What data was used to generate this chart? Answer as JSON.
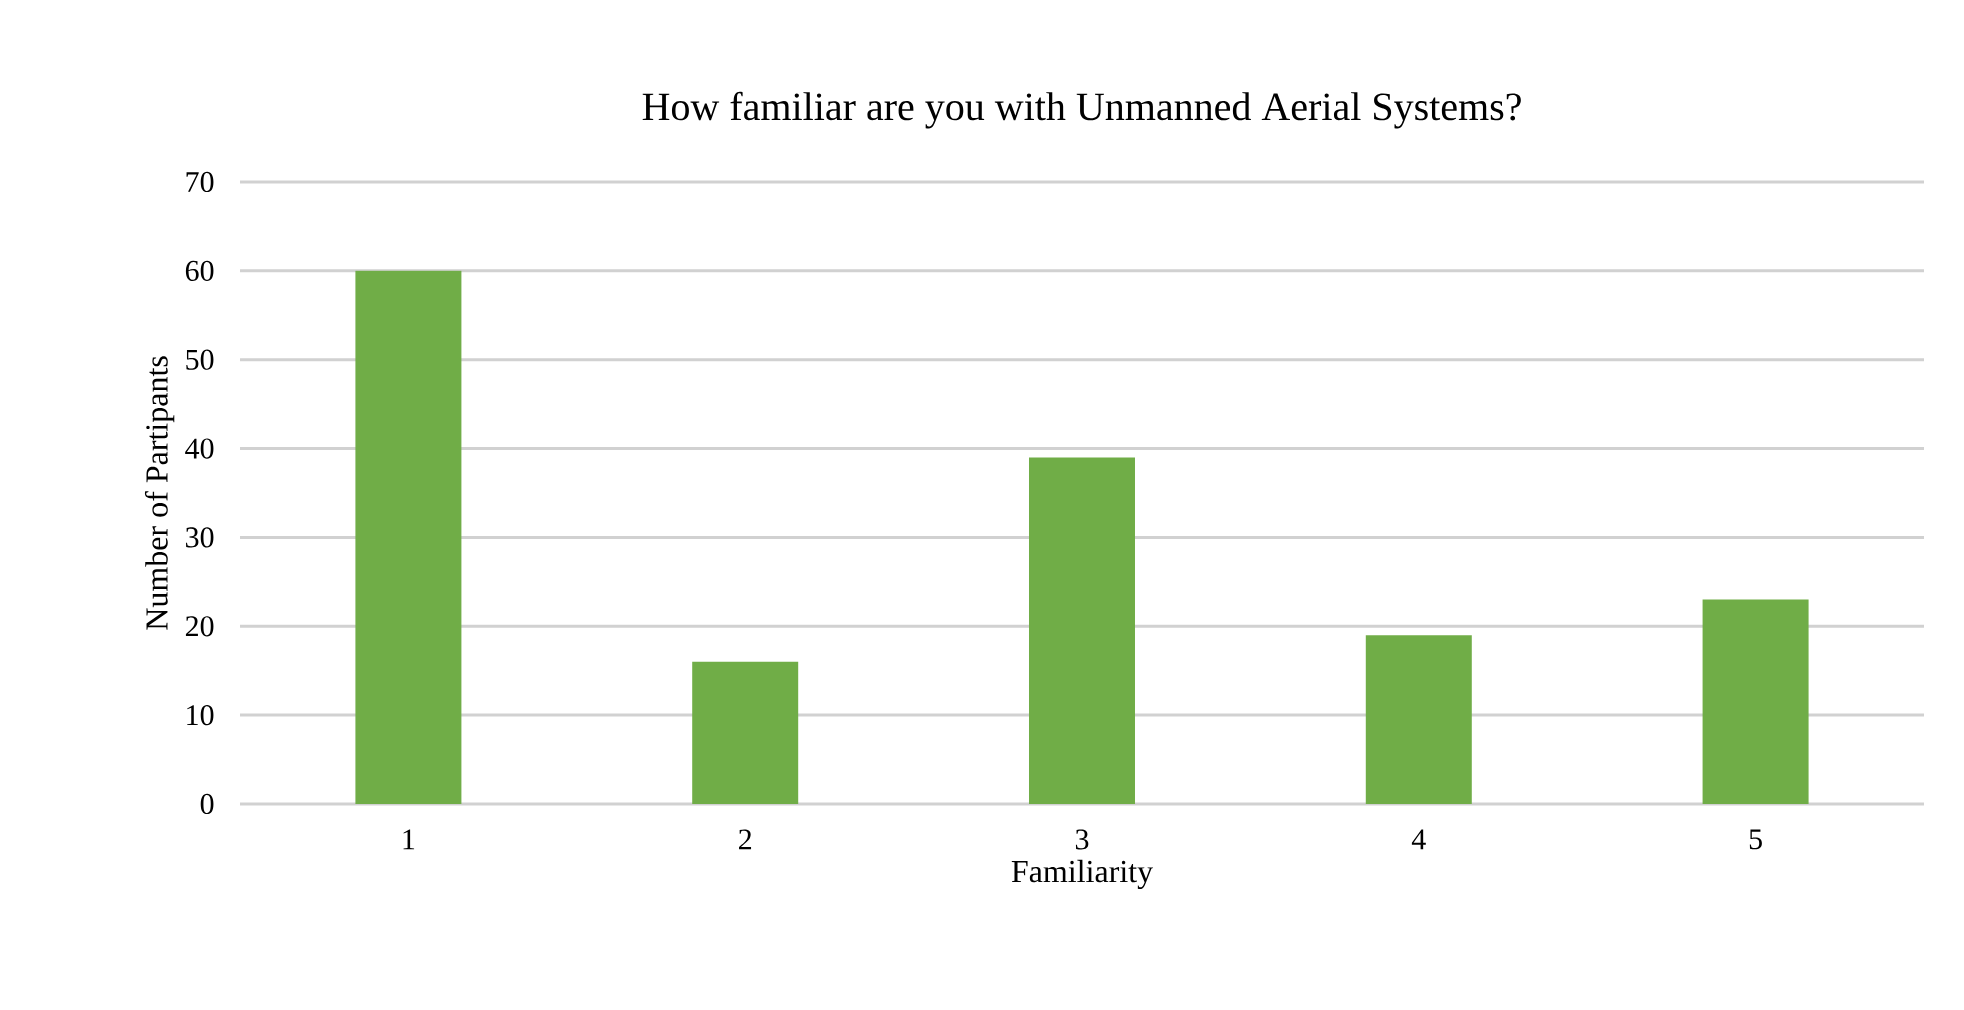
{
  "chart_data": {
    "type": "bar",
    "title": "How familiar are you with Unmanned Aerial Systems?",
    "xlabel": "Familiarity",
    "ylabel": "Number of Partipants",
    "categories": [
      "1",
      "2",
      "3",
      "4",
      "5"
    ],
    "values": [
      60,
      16,
      39,
      19,
      23
    ],
    "color": "#70ad47",
    "ylim": [
      0,
      70
    ],
    "yticks": [
      0,
      10,
      20,
      30,
      40,
      50,
      60,
      70
    ],
    "grid": "y"
  }
}
